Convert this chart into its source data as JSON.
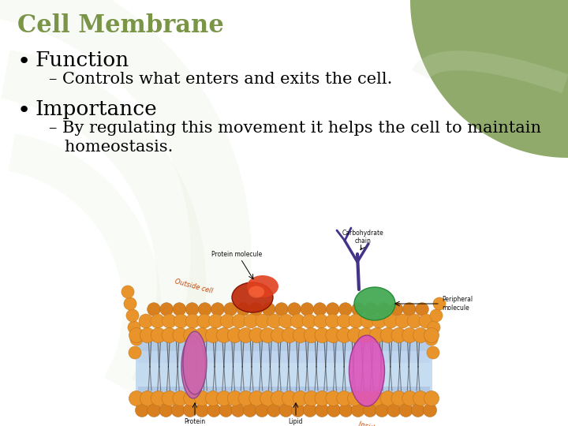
{
  "title": "Cell Membrane",
  "title_color": "#7a9448",
  "title_fontsize": 22,
  "bg_color": "#ffffff",
  "bullet1": "Function",
  "sub1": "– Controls what enters and exits the cell.",
  "bullet2": "Importance",
  "sub2_line1": "– By regulating this movement it helps the cell to maintain",
  "sub2_line2": "   homeostasis.",
  "bullet_fontsize": 19,
  "sub_fontsize": 15,
  "text_color": "#000000",
  "corner_color": "#8faa6a",
  "swirl_color": "#d8e4c8",
  "swirl_color2": "#e8efe0"
}
